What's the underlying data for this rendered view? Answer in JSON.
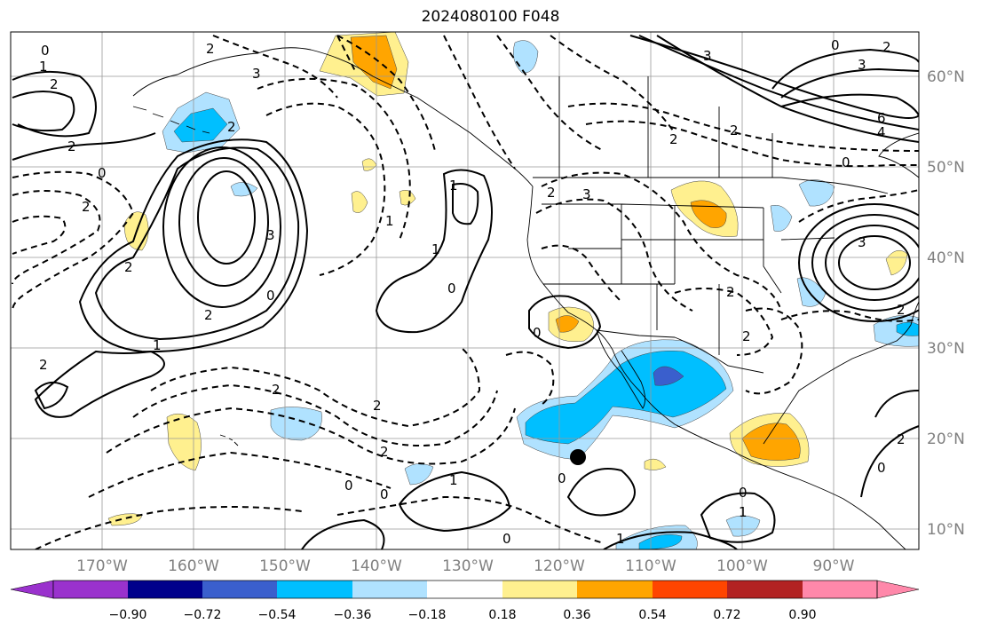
{
  "title": "2024080100 F048",
  "lon_labels": [
    "170°W",
    "160°W",
    "150°W",
    "140°W",
    "130°W",
    "120°W",
    "110°W",
    "100°W",
    "90°W"
  ],
  "lat_labels": [
    "60°N",
    "50°N",
    "40°N",
    "30°N",
    "20°N",
    "10°N"
  ],
  "colorbar": {
    "colors": [
      "#9a32cd",
      "#00008b",
      "#3a5fcd",
      "#00bfff",
      "#b0e2ff",
      "#ffffff",
      "#fff08f",
      "#ffa500",
      "#ff4500",
      "#b22222",
      "#ff88aa"
    ],
    "tick_labels": [
      "−0.90",
      "−0.72",
      "−0.54",
      "−0.36",
      "−0.18",
      "0.18",
      "0.36",
      "0.54",
      "0.72",
      "0.90"
    ]
  },
  "contour_labels": [
    "0",
    "1",
    "2",
    "2",
    "3",
    "3",
    "2",
    "3",
    "6",
    "4",
    "2",
    "0",
    "2",
    "0",
    "2",
    "2",
    "2",
    "3",
    "2",
    "1",
    "0",
    "1",
    "0",
    "2",
    "2",
    "1",
    "0",
    "0",
    "1",
    "0",
    "1",
    "2",
    "2",
    "1",
    "0",
    "0",
    "2",
    "3",
    "2",
    "3",
    "2",
    "0",
    "2",
    "2",
    "0",
    "2",
    "0",
    "1"
  ],
  "marker": "filled black circle"
}
